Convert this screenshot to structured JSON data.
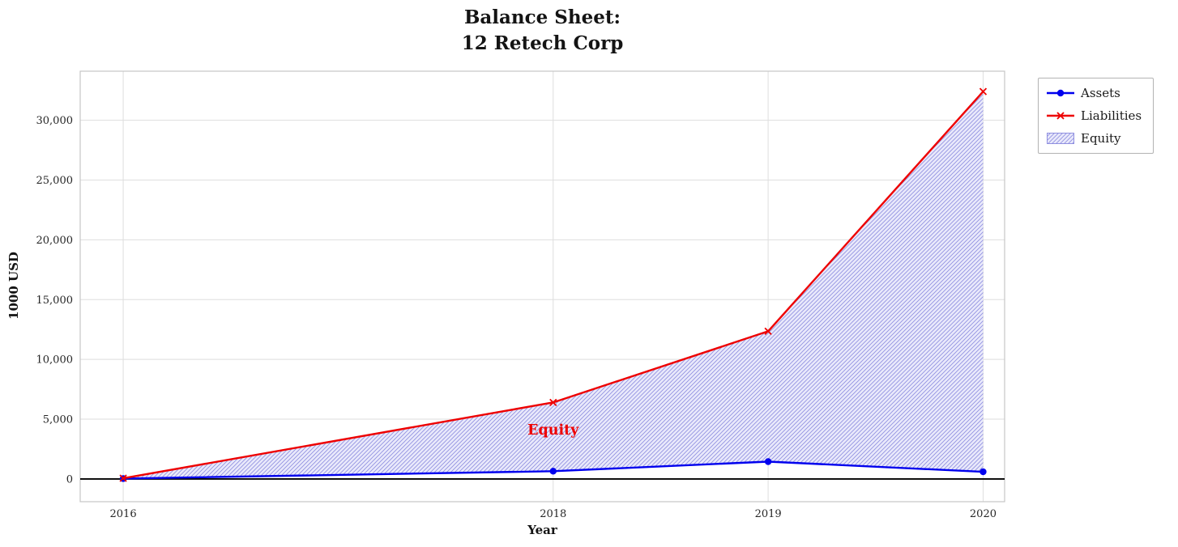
{
  "chart_data": {
    "type": "line",
    "title": "Balance Sheet:\n12 Retech Corp",
    "xlabel": "Year",
    "ylabel": "1000 USD",
    "x": [
      2016,
      2018,
      2019,
      2020
    ],
    "series": [
      {
        "name": "Assets",
        "color": "#0000ee",
        "marker": "circle",
        "values": [
          30,
          650,
          1450,
          600
        ]
      },
      {
        "name": "Liabilities",
        "color": "#ee0000",
        "marker": "x",
        "values": [
          60,
          6400,
          12350,
          32400
        ]
      }
    ],
    "fill_between": {
      "label": "Equity",
      "between": [
        "Assets",
        "Liabilities"
      ],
      "facecolor": "#e9e9fb",
      "hatch": "//",
      "hatch_color": "#8f8fe0"
    },
    "annotation": {
      "text": "Equity",
      "x": 2018,
      "y": 3700,
      "color": "#ee0000"
    },
    "xlim": [
      2015.8,
      2020.1
    ],
    "ylim": [
      -1900,
      34100
    ],
    "xticks": [
      2016,
      2018,
      2019,
      2020
    ],
    "xtick_labels": [
      "2016",
      "2018",
      "2019",
      "2020"
    ],
    "yticks": [
      0,
      5000,
      10000,
      15000,
      20000,
      25000,
      30000
    ],
    "ytick_labels": [
      "0",
      "5,000",
      "10,000",
      "15,000",
      "20,000",
      "25,000",
      "30,000"
    ],
    "grid": true,
    "grid_color": "#dedede",
    "spine_color": "#c6c6c6",
    "zero_line_color": "#000000",
    "legend_position": "outside-top-right"
  }
}
